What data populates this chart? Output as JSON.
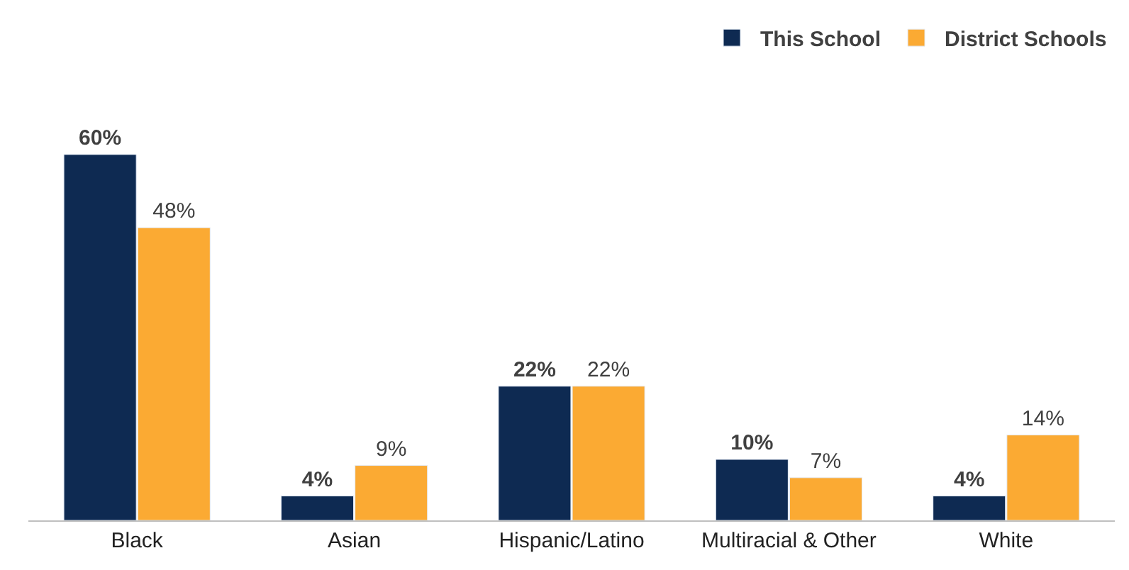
{
  "chart_data": {
    "type": "bar",
    "categories": [
      "Black",
      "Asian",
      "Hispanic/Latino",
      "Multiracial & Other",
      "White"
    ],
    "series": [
      {
        "name": "This School",
        "color": "#0e2a52",
        "values": [
          60,
          4,
          22,
          10,
          4
        ],
        "value_labels": [
          "60%",
          "4%",
          "22%",
          "10%",
          "4%"
        ]
      },
      {
        "name": "District Schools",
        "color": "#fbaa33",
        "values": [
          48,
          9,
          22,
          7,
          14
        ],
        "value_labels": [
          "48%",
          "9%",
          "22%",
          "7%",
          "14%"
        ]
      }
    ],
    "legend": "top right"
  }
}
